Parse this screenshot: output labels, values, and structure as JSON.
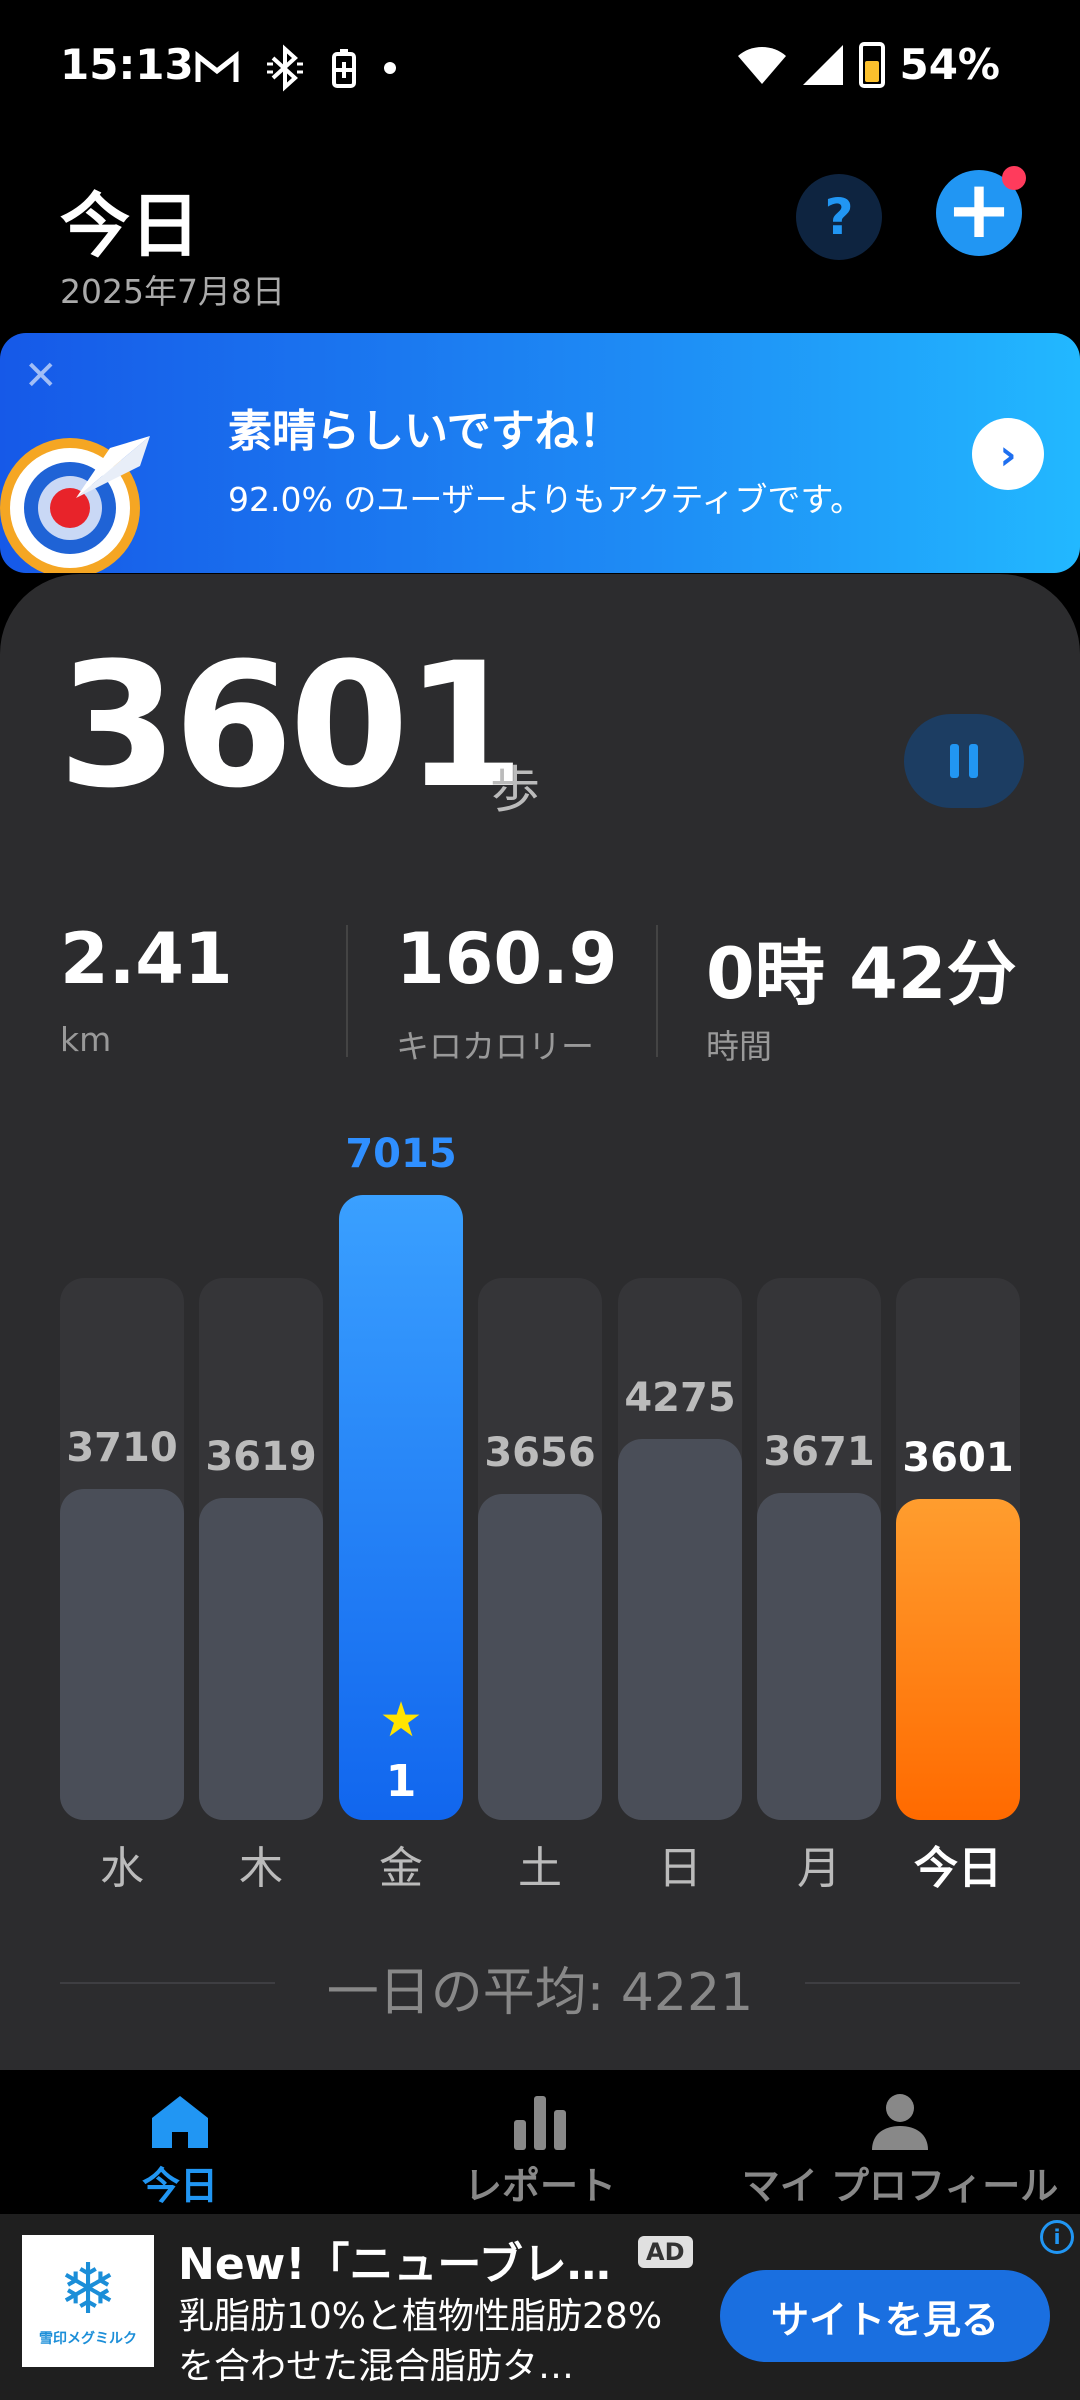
{
  "status_bar": {
    "time": "15:13",
    "battery": "54%",
    "icons": [
      "gmail-icon",
      "bluetooth-icon",
      "battery-saver-icon",
      "dot-icon",
      "wifi-icon",
      "signal-icon",
      "battery-icon"
    ]
  },
  "header": {
    "title": "今日",
    "date": "2025年7月8日",
    "help_label": "?"
  },
  "banner": {
    "title": "素晴らしいですね！",
    "subtitle": "92.0% のユーザーよりもアクティブです。"
  },
  "summary": {
    "steps": "3601",
    "steps_unit": "歩",
    "metrics": [
      {
        "value": "2.41",
        "label": "km"
      },
      {
        "value": "160.9",
        "label": "キロカロリー"
      },
      {
        "value": "0時 42分",
        "label": "時間"
      }
    ]
  },
  "chart_data": {
    "type": "bar",
    "categories": [
      "水",
      "木",
      "金",
      "土",
      "日",
      "月",
      "今日"
    ],
    "values": [
      3710,
      3619,
      7015,
      3656,
      4275,
      3671,
      3601
    ],
    "value_labels": [
      "3710",
      "3619",
      "7015",
      "3656",
      "4275",
      "3671",
      "3601"
    ],
    "best_index": 2,
    "best_rank": "1",
    "today_index": 6,
    "ylim": [
      0,
      7015
    ],
    "average_label": "一日の平均: 4221",
    "colors": {
      "default": "#4a4e58",
      "best": "#1e7cf5",
      "today": "#ff7a0a"
    }
  },
  "nav": {
    "items": [
      {
        "label": "今日",
        "icon": "home-icon",
        "active": true
      },
      {
        "label": "レポート",
        "icon": "bar-chart-icon",
        "active": false
      },
      {
        "label": "マイ プロフィール",
        "icon": "person-icon",
        "active": false
      }
    ]
  },
  "ad": {
    "brand": "雪印メグミルク",
    "title": "New!「ニューブレ…",
    "badge": "AD",
    "body": "乳脂肪10%と植物性脂肪28%を合わせた混合脂肪タ…",
    "cta": "サイトを見る"
  }
}
